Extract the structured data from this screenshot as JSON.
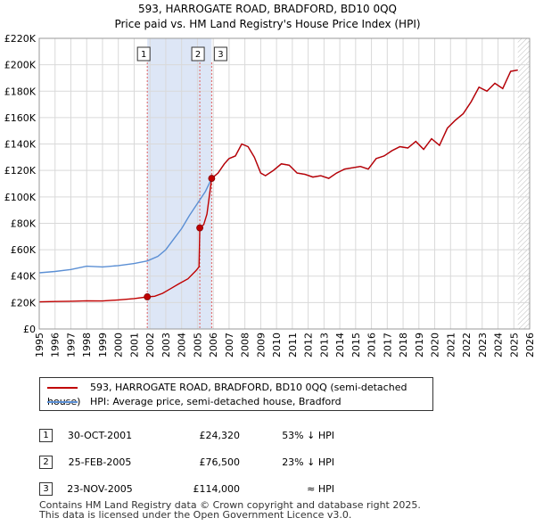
{
  "chart_data": {
    "type": "line",
    "title": "593, HARROGATE ROAD, BRADFORD, BD10 0QQ",
    "subtitle": "Price paid vs. HM Land Registry's House Price Index (HPI)",
    "xlim": [
      1995,
      2026
    ],
    "ylim": [
      0,
      220000
    ],
    "x_ticks": [
      "1995",
      "1996",
      "1997",
      "1998",
      "1999",
      "2000",
      "2001",
      "2002",
      "2003",
      "2004",
      "2005",
      "2006",
      "2007",
      "2008",
      "2009",
      "2010",
      "2011",
      "2012",
      "2013",
      "2014",
      "2015",
      "2016",
      "2017",
      "2018",
      "2019",
      "2020",
      "2021",
      "2022",
      "2023",
      "2024",
      "2025",
      "2026"
    ],
    "y_ticks": [
      0,
      20000,
      40000,
      60000,
      80000,
      100000,
      120000,
      140000,
      160000,
      180000,
      200000,
      220000
    ],
    "y_tick_labels": [
      "£0",
      "£20K",
      "£40K",
      "£60K",
      "£80K",
      "£100K",
      "£120K",
      "£140K",
      "£160K",
      "£180K",
      "£200K",
      "£220K"
    ],
    "shaded_period": [
      2001.83,
      2005.9
    ],
    "data_end": 2025.25,
    "series": [
      {
        "name": "593, HARROGATE ROAD, BRADFORD, BD10 0QQ (semi-detached house)",
        "color": "#c00000",
        "points": [
          [
            1995.0,
            20500
          ],
          [
            1996.0,
            20800
          ],
          [
            1997.0,
            21000
          ],
          [
            1998.0,
            21300
          ],
          [
            1999.0,
            21200
          ],
          [
            2000.0,
            22000
          ],
          [
            2001.0,
            23000
          ],
          [
            2001.83,
            24320
          ],
          [
            2002.3,
            24800
          ],
          [
            2002.8,
            27000
          ],
          [
            2003.3,
            30500
          ],
          [
            2003.8,
            34000
          ],
          [
            2004.4,
            38000
          ],
          [
            2004.9,
            44000
          ],
          [
            2005.1,
            47000
          ],
          [
            2005.15,
            76500
          ],
          [
            2005.4,
            79000
          ],
          [
            2005.6,
            87000
          ],
          [
            2005.9,
            114000
          ],
          [
            2006.3,
            118000
          ],
          [
            2006.7,
            125000
          ],
          [
            2007.0,
            129000
          ],
          [
            2007.4,
            131000
          ],
          [
            2007.8,
            140000
          ],
          [
            2008.2,
            138000
          ],
          [
            2008.6,
            130000
          ],
          [
            2009.0,
            118000
          ],
          [
            2009.3,
            116000
          ],
          [
            2009.8,
            120000
          ],
          [
            2010.3,
            125000
          ],
          [
            2010.8,
            124000
          ],
          [
            2011.3,
            118000
          ],
          [
            2011.8,
            117000
          ],
          [
            2012.3,
            115000
          ],
          [
            2012.8,
            116000
          ],
          [
            2013.3,
            114000
          ],
          [
            2013.8,
            118000
          ],
          [
            2014.3,
            121000
          ],
          [
            2014.8,
            122000
          ],
          [
            2015.3,
            123000
          ],
          [
            2015.8,
            121000
          ],
          [
            2016.3,
            129000
          ],
          [
            2016.8,
            131000
          ],
          [
            2017.3,
            135000
          ],
          [
            2017.8,
            138000
          ],
          [
            2018.3,
            137000
          ],
          [
            2018.8,
            142000
          ],
          [
            2019.3,
            136000
          ],
          [
            2019.8,
            144000
          ],
          [
            2020.3,
            139000
          ],
          [
            2020.8,
            152000
          ],
          [
            2021.3,
            158000
          ],
          [
            2021.8,
            163000
          ],
          [
            2022.3,
            172000
          ],
          [
            2022.8,
            183000
          ],
          [
            2023.3,
            180000
          ],
          [
            2023.8,
            186000
          ],
          [
            2024.3,
            182000
          ],
          [
            2024.8,
            195000
          ],
          [
            2025.25,
            196000
          ]
        ]
      },
      {
        "name": "HPI: Average price, semi-detached house, Bradford",
        "color": "#5b8fd4",
        "points": [
          [
            1995.0,
            42500
          ],
          [
            1996.0,
            43500
          ],
          [
            1997.0,
            45000
          ],
          [
            1998.0,
            47500
          ],
          [
            1999.0,
            47000
          ],
          [
            2000.0,
            48000
          ],
          [
            2001.0,
            49500
          ],
          [
            2001.83,
            51500
          ],
          [
            2002.5,
            55000
          ],
          [
            2003.0,
            60000
          ],
          [
            2003.5,
            68000
          ],
          [
            2004.0,
            76000
          ],
          [
            2004.5,
            86000
          ],
          [
            2005.0,
            95000
          ],
          [
            2005.5,
            104000
          ],
          [
            2005.9,
            114000
          ],
          [
            2006.3,
            118000
          ],
          [
            2006.7,
            125000
          ],
          [
            2007.0,
            129000
          ],
          [
            2007.4,
            131000
          ],
          [
            2007.8,
            140000
          ],
          [
            2008.2,
            138000
          ],
          [
            2008.6,
            130000
          ],
          [
            2009.0,
            118000
          ],
          [
            2009.3,
            116000
          ],
          [
            2009.8,
            120000
          ],
          [
            2010.3,
            125000
          ],
          [
            2010.8,
            124000
          ],
          [
            2011.3,
            118000
          ],
          [
            2011.8,
            117000
          ],
          [
            2012.3,
            115000
          ],
          [
            2012.8,
            116000
          ],
          [
            2013.3,
            114000
          ],
          [
            2013.8,
            118000
          ],
          [
            2014.3,
            121000
          ],
          [
            2014.8,
            122000
          ],
          [
            2015.3,
            123000
          ],
          [
            2015.8,
            121000
          ],
          [
            2016.3,
            129000
          ],
          [
            2016.8,
            131000
          ],
          [
            2017.3,
            135000
          ],
          [
            2017.8,
            138000
          ],
          [
            2018.3,
            137000
          ],
          [
            2018.8,
            142000
          ],
          [
            2019.3,
            136000
          ],
          [
            2019.8,
            144000
          ],
          [
            2020.3,
            139000
          ],
          [
            2020.8,
            152000
          ],
          [
            2021.3,
            158000
          ],
          [
            2021.8,
            163000
          ],
          [
            2022.3,
            172000
          ],
          [
            2022.8,
            183000
          ],
          [
            2023.3,
            180000
          ],
          [
            2023.8,
            186000
          ],
          [
            2024.3,
            182000
          ],
          [
            2024.8,
            195000
          ],
          [
            2025.25,
            196000
          ]
        ]
      }
    ],
    "sales": [
      {
        "id": "1",
        "x": 2001.83,
        "price": 24320
      },
      {
        "id": "2",
        "x": 2005.15,
        "price": 76500
      },
      {
        "id": "3",
        "x": 2005.9,
        "price": 114000
      }
    ]
  },
  "legend": {
    "property_label": "593, HARROGATE ROAD, BRADFORD, BD10 0QQ (semi-detached house)",
    "hpi_label": "HPI: Average price, semi-detached house, Bradford",
    "property_color": "#c00000",
    "hpi_color": "#5b8fd4"
  },
  "sales_table": [
    {
      "num": "1",
      "date": "30-OCT-2001",
      "price": "£24,320",
      "hpi": "53% ↓ HPI"
    },
    {
      "num": "2",
      "date": "25-FEB-2005",
      "price": "£76,500",
      "hpi": "23% ↓ HPI"
    },
    {
      "num": "3",
      "date": "23-NOV-2005",
      "price": "£114,000",
      "hpi": "≈ HPI"
    }
  ],
  "footer": {
    "line1": "Contains HM Land Registry data © Crown copyright and database right 2025.",
    "line2": "This data is licensed under the Open Government Licence v3.0."
  }
}
